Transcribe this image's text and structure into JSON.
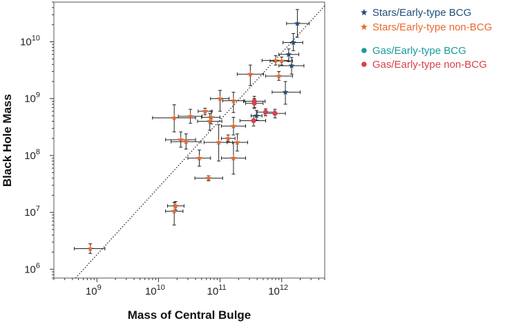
{
  "chart_data": {
    "type": "scatter",
    "xlabel": "Mass of Central Bulge",
    "ylabel": "Black Hole Mass",
    "x_scale": "log",
    "y_scale": "log",
    "xlim": [
      200000000.0,
      5000000000000.0
    ],
    "ylim": [
      700000.0,
      50000000000.0
    ],
    "x_ticks": [
      {
        "value": 1000000000.0,
        "base": "10",
        "exp": "9"
      },
      {
        "value": 10000000000.0,
        "base": "10",
        "exp": "10"
      },
      {
        "value": 100000000000.0,
        "base": "10",
        "exp": "11"
      },
      {
        "value": 1000000000000.0,
        "base": "10",
        "exp": "12"
      }
    ],
    "y_ticks": [
      {
        "value": 1000000.0,
        "base": "10",
        "exp": "6"
      },
      {
        "value": 10000000.0,
        "base": "10",
        "exp": "7"
      },
      {
        "value": 100000000.0,
        "base": "10",
        "exp": "8"
      },
      {
        "value": 1000000000.0,
        "base": "10",
        "exp": "9"
      },
      {
        "value": 10000000000.0,
        "base": "10",
        "exp": "10"
      }
    ],
    "grid": false,
    "legend_position": "outside-top-right",
    "reference_line": {
      "style": "dotted",
      "points": [
        [
          450000000.0,
          700000.0
        ],
        [
          5000000000000.0,
          43000000000.0
        ]
      ]
    },
    "series": [
      {
        "name": "Stars/Early-type BCG",
        "marker": "star",
        "color": "#1f4e79",
        "points": [
          {
            "x": 1800000000000.0,
            "y": 21000000000.0,
            "xerr": [
              1200000000000.0,
              2800000000000.0
            ],
            "yerr": [
              12000000000.0,
              37000000000.0
            ]
          },
          {
            "x": 1550000000000.0,
            "y": 9700000000.0,
            "xerr": [
              1050000000000.0,
              2200000000000.0
            ],
            "yerr": [
              7000000000.0,
              14000000000.0
            ]
          },
          {
            "x": 1300000000000.0,
            "y": 6000000000.0,
            "xerr": [
              900000000000.0,
              1900000000000.0
            ],
            "yerr": [
              4500000000.0,
              7500000000.0
            ]
          },
          {
            "x": 1450000000000.0,
            "y": 3800000000.0,
            "xerr": [
              900000000000.0,
              2300000000000.0
            ],
            "yerr": [
              2700000000.0,
              5300000000.0
            ]
          },
          {
            "x": 1150000000000.0,
            "y": 1300000000.0,
            "xerr": [
              700000000000.0,
              2000000000000.0
            ],
            "yerr": [
              800000000.0,
              2000000000.0
            ]
          },
          {
            "x": 390000000000.0,
            "y": 500000000.0,
            "xerr": [
              320000000000.0,
              480000000000.0
            ],
            "yerr": [
              420000000.0,
              620000000.0
            ]
          }
        ]
      },
      {
        "name": "Stars/Early-type non-BCG",
        "marker": "star",
        "color": "#e8692d",
        "points": [
          {
            "x": 800000000000.0,
            "y": 4700000000.0,
            "xerr": [
              480000000000.0,
              1300000000000.0
            ],
            "yerr": [
              3900000000.0,
              5700000000.0
            ]
          },
          {
            "x": 1000000000000.0,
            "y": 4600000000.0,
            "xerr": [
              650000000000.0,
              1500000000000.0
            ],
            "yerr": [
              3900000000.0,
              5400000000.0
            ]
          },
          {
            "x": 900000000000.0,
            "y": 2500000000.0,
            "xerr": [
              550000000000.0,
              1500000000000.0
            ],
            "yerr": [
              2100000000.0,
              3000000000.0
            ]
          },
          {
            "x": 310000000000.0,
            "y": 2700000000.0,
            "xerr": [
              190000000000.0,
              510000000000.0
            ],
            "yerr": [
              1700000000.0,
              3900000000.0
            ]
          },
          {
            "x": 100000000000.0,
            "y": 1000000000.0,
            "xerr": [
              70000000000.0,
              140000000000.0
            ],
            "yerr": [
              600000000.0,
              1400000000.0
            ]
          },
          {
            "x": 165000000000.0,
            "y": 920000000.0,
            "xerr": [
              110000000000.0,
              250000000000.0
            ],
            "yerr": [
              570000000.0,
              1300000000.0
            ]
          },
          {
            "x": 57000000000.0,
            "y": 600000000.0,
            "xerr": [
              44000000000.0,
              74000000000.0
            ],
            "yerr": [
              520000000.0,
              680000000.0
            ]
          },
          {
            "x": 72000000000.0,
            "y": 470000000.0,
            "xerr": [
              50000000000.0,
              100000000000.0
            ],
            "yerr": [
              360000000.0,
              610000000.0
            ]
          },
          {
            "x": 18000000000.0,
            "y": 460000000.0,
            "xerr": [
              8000000000.0,
              40000000000.0
            ],
            "yerr": [
              260000000.0,
              780000000.0
            ]
          },
          {
            "x": 33000000000.0,
            "y": 490000000.0,
            "xerr": [
              21000000000.0,
              51000000000.0
            ],
            "yerr": [
              370000000.0,
              650000000.0
            ]
          },
          {
            "x": 68000000000.0,
            "y": 400000000.0,
            "xerr": [
              43000000000.0,
              107000000000.0
            ],
            "yerr": [
              280000000.0,
              550000000.0
            ]
          },
          {
            "x": 165000000000.0,
            "y": 330000000.0,
            "xerr": [
              105000000000.0,
              260000000000.0
            ],
            "yerr": [
              230000000.0,
              470000000.0
            ]
          },
          {
            "x": 135000000000.0,
            "y": 200000000.0,
            "xerr": [
              105000000000.0,
              175000000000.0
            ],
            "yerr": [
              175000000.0,
              230000000.0
            ]
          },
          {
            "x": 23000000000.0,
            "y": 190000000.0,
            "xerr": [
              13000000000.0,
              40000000000.0
            ],
            "yerr": [
              140000000.0,
              260000000.0
            ]
          },
          {
            "x": 28000000000.0,
            "y": 175000000.0,
            "xerr": [
              16000000000.0,
              49000000000.0
            ],
            "yerr": [
              130000000.0,
              240000000.0
            ]
          },
          {
            "x": 95000000000.0,
            "y": 170000000.0,
            "xerr": [
              55000000000.0,
              160000000000.0
            ],
            "yerr": [
              80000000.0,
              350000000.0
            ]
          },
          {
            "x": 190000000000.0,
            "y": 170000000.0,
            "xerr": [
              130000000000.0,
              280000000000.0
            ],
            "yerr": [
              120000000.0,
              240000000.0
            ]
          },
          {
            "x": 46000000000.0,
            "y": 90000000.0,
            "xerr": [
              30000000000.0,
              70000000000.0
            ],
            "yerr": [
              65000000.0,
              125000000.0
            ]
          },
          {
            "x": 165000000000.0,
            "y": 90000000.0,
            "xerr": [
              105000000000.0,
              260000000000.0
            ],
            "yerr": [
              47000000.0,
              170000000.0
            ]
          },
          {
            "x": 65000000000.0,
            "y": 40000000.0,
            "xerr": [
              39000000000.0,
              110000000000.0
            ],
            "yerr": [
              36000000.0,
              44000000.0
            ]
          },
          {
            "x": 19000000000.0,
            "y": 13000000.0,
            "xerr": [
              14000000000.0,
              26000000000.0
            ],
            "yerr": [
              11000000.0,
              15500000.0
            ]
          },
          {
            "x": 18000000000.0,
            "y": 10500000.0,
            "xerr": [
              13000000000.0,
              25000000000.0
            ],
            "yerr": [
              6000000.0,
              15000000.0
            ]
          },
          {
            "x": 780000000.0,
            "y": 2300000.0,
            "xerr": [
              430000000.0,
              1350000000.0
            ],
            "yerr": [
              1900000.0,
              2800000.0
            ]
          }
        ]
      },
      {
        "name": "Gas/Early-type BCG",
        "marker": "circle",
        "color": "#1a9b9b",
        "points": []
      },
      {
        "name": "Gas/Early-type non-BCG",
        "marker": "circle",
        "color": "#d9414b",
        "points": [
          {
            "x": 360000000000.0,
            "y": 900000000.0,
            "xerr": [
              240000000000.0,
              540000000000.0
            ],
            "yerr": [
              700000000.0,
              1100000000.0
            ]
          },
          {
            "x": 360000000000.0,
            "y": 830000000.0,
            "xerr": [
              260000000000.0,
              500000000000.0
            ],
            "yerr": [
              670000000.0,
              1000000000.0
            ]
          },
          {
            "x": 550000000000.0,
            "y": 580000000.0,
            "xerr": [
              400000000000.0,
              750000000000.0
            ],
            "yerr": [
              500000000.0,
              660000000.0
            ]
          },
          {
            "x": 780000000000.0,
            "y": 550000000.0,
            "xerr": [
              520000000000.0,
              1150000000000.0
            ],
            "yerr": [
              460000000.0,
              650000000.0
            ]
          },
          {
            "x": 350000000000.0,
            "y": 410000000.0,
            "xerr": [
              210000000000.0,
              550000000000.0
            ],
            "yerr": [
              330000000.0,
              500000000.0
            ]
          }
        ]
      }
    ]
  }
}
